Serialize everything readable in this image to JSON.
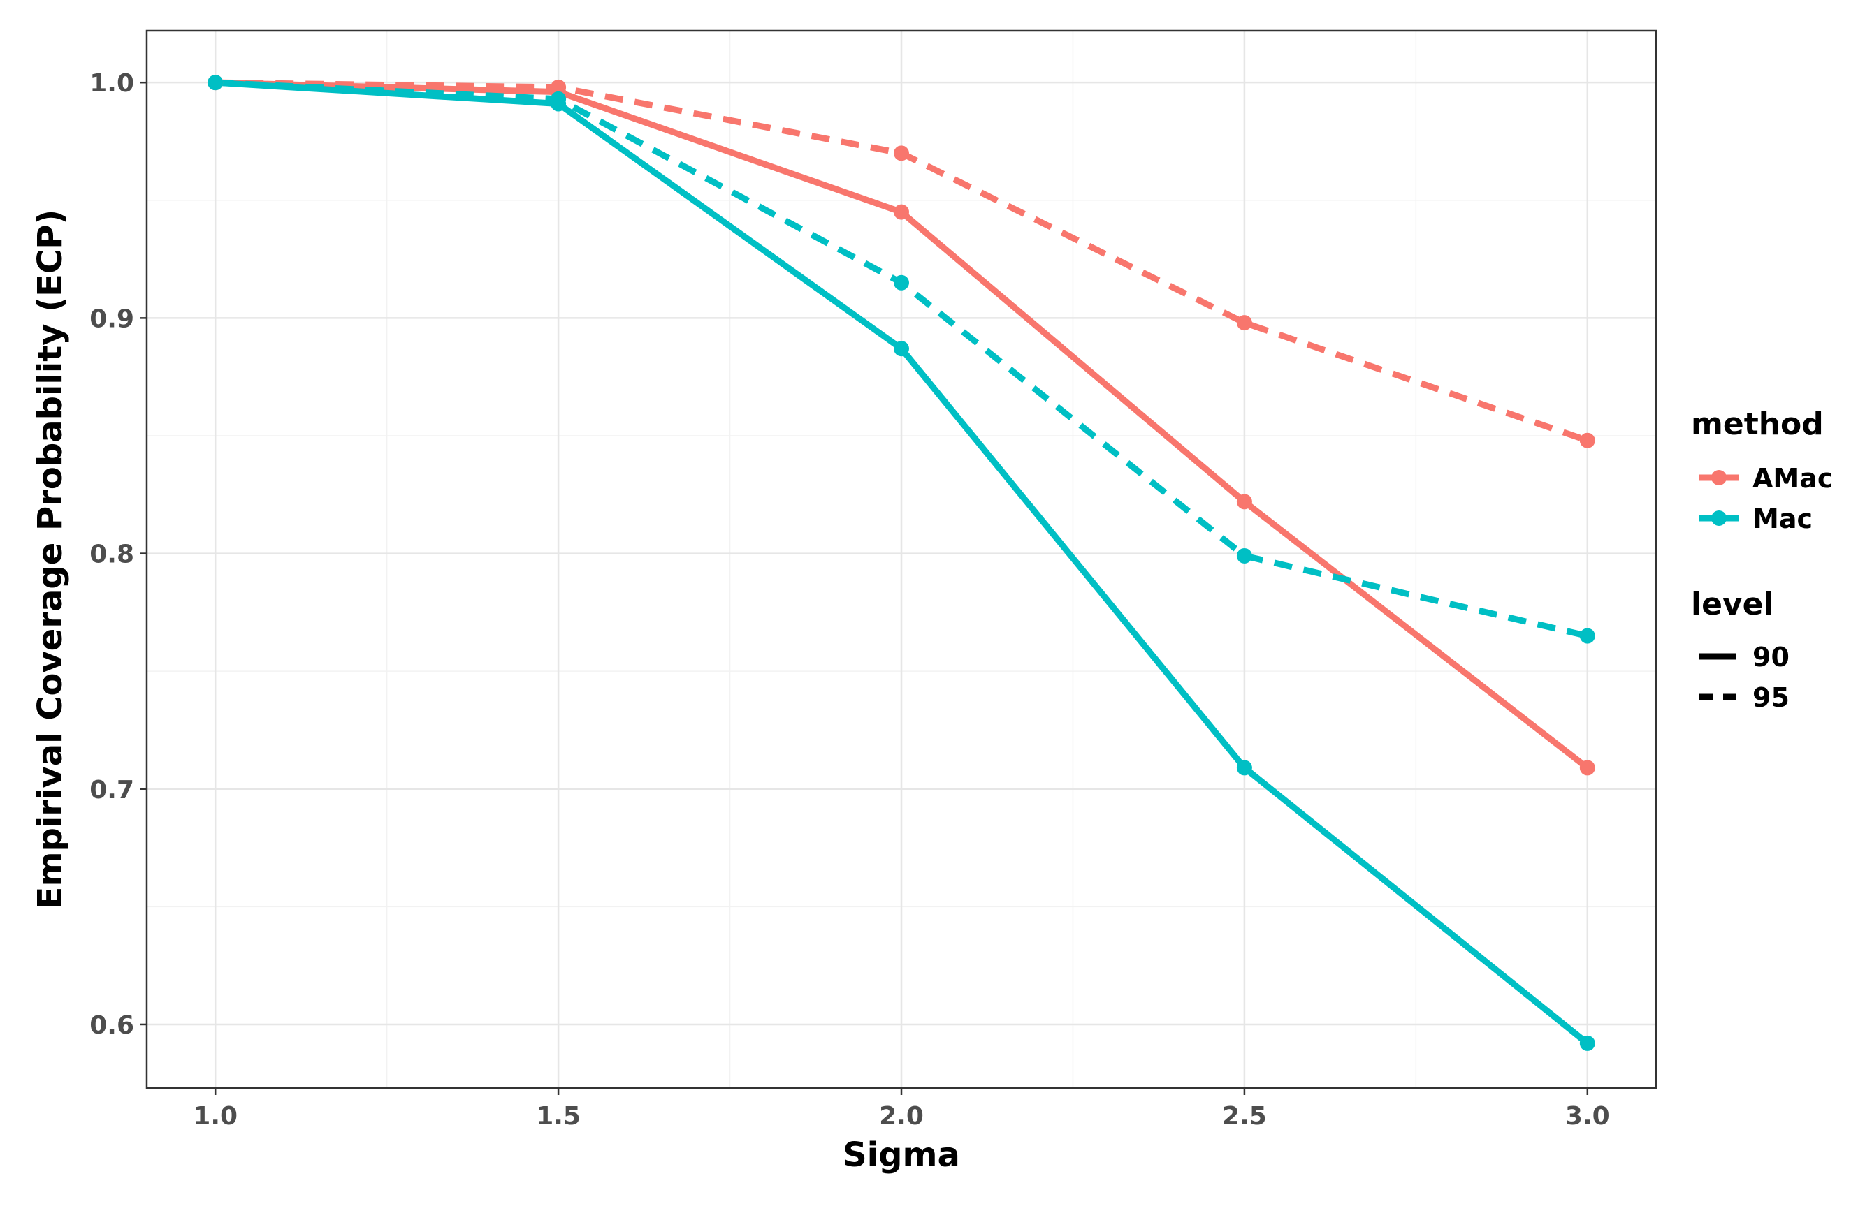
{
  "chart_data": {
    "type": "line",
    "title": "",
    "xlabel": "Sigma",
    "ylabel": "Empirival Coverage Probability (ECP)",
    "x": [
      1.0,
      1.5,
      2.0,
      2.5,
      3.0
    ],
    "xlim": [
      0.9,
      3.1
    ],
    "ylim": [
      0.573,
      1.022
    ],
    "x_ticks": [
      "1.0",
      "1.5",
      "2.0",
      "2.5",
      "3.0"
    ],
    "y_ticks": [
      "0.6",
      "0.7",
      "0.8",
      "0.9",
      "1.0"
    ],
    "grid": true,
    "legend_position": "right",
    "series": [
      {
        "method": "AMac",
        "level": "90",
        "color": "#F8766D",
        "dash": "solid",
        "values": [
          1.0,
          0.996,
          0.945,
          0.822,
          0.709
        ]
      },
      {
        "method": "AMac",
        "level": "95",
        "color": "#F8766D",
        "dash": "dashed",
        "values": [
          1.0,
          0.998,
          0.97,
          0.898,
          0.848
        ]
      },
      {
        "method": "Mac",
        "level": "90",
        "color": "#00BFC4",
        "dash": "solid",
        "values": [
          1.0,
          0.991,
          0.887,
          0.709,
          0.592
        ]
      },
      {
        "method": "Mac",
        "level": "95",
        "color": "#00BFC4",
        "dash": "dashed",
        "values": [
          1.0,
          0.993,
          0.915,
          0.799,
          0.765
        ]
      }
    ],
    "legend": {
      "method_title": "method",
      "method_items": [
        {
          "label": "AMac",
          "color": "#F8766D"
        },
        {
          "label": "Mac",
          "color": "#00BFC4"
        }
      ],
      "level_title": "level",
      "level_items": [
        {
          "label": "90",
          "dash": "solid"
        },
        {
          "label": "95",
          "dash": "dashed"
        }
      ]
    }
  }
}
